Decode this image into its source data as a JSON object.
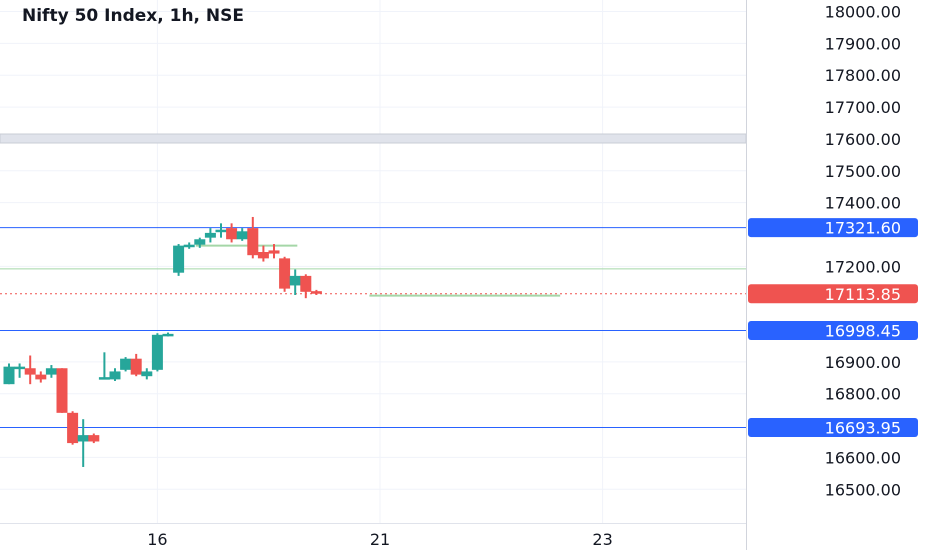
{
  "title": "Nifty 50 Index, 1h, NSE",
  "colors": {
    "up": "#26a69a",
    "down": "#ef5350",
    "level_line": "#2962ff",
    "level_badge": "#2962ff",
    "last_price_badge": "#ef5350",
    "green_line": "#a5d6a7",
    "grid": "#f0f3fa"
  },
  "chart_data": {
    "type": "candlestick",
    "ylim": [
      16460,
      18030
    ],
    "y_ticks": [
      "18000.00",
      "17900.00",
      "17800.00",
      "17700.00",
      "17600.00",
      "17500.00",
      "17400.00",
      "17200.00",
      "16900.00",
      "16800.00",
      "16600.00",
      "16500.00"
    ],
    "y_tick_values": [
      18000,
      17900,
      17800,
      17700,
      17600,
      17500,
      17400,
      17200,
      16900,
      16800,
      16600,
      16500
    ],
    "x_ticks": [
      {
        "label": "16",
        "index": 14.0
      },
      {
        "label": "21",
        "index": 35.0
      },
      {
        "label": "23",
        "index": 56.0
      }
    ],
    "candles": [
      {
        "o": 16830,
        "h": 16895,
        "l": 16830,
        "c": 16885
      },
      {
        "o": 16880,
        "h": 16895,
        "l": 16850,
        "c": 16885
      },
      {
        "o": 16880,
        "h": 16920,
        "l": 16830,
        "c": 16860
      },
      {
        "o": 16860,
        "h": 16870,
        "l": 16835,
        "c": 16845
      },
      {
        "o": 16860,
        "h": 16890,
        "l": 16850,
        "c": 16880
      },
      {
        "o": 16880,
        "h": 16880,
        "l": 16740,
        "c": 16740
      },
      {
        "o": 16740,
        "h": 16745,
        "l": 16640,
        "c": 16645
      },
      {
        "o": 16650,
        "h": 16720,
        "l": 16570,
        "c": 16670
      },
      {
        "o": 16670,
        "h": 16675,
        "l": 16645,
        "c": 16650
      },
      {
        "o": 16850,
        "h": 16930,
        "l": 16845,
        "c": 16852
      },
      {
        "o": 16845,
        "h": 16880,
        "l": 16840,
        "c": 16870
      },
      {
        "o": 16875,
        "h": 16915,
        "l": 16870,
        "c": 16910
      },
      {
        "o": 16910,
        "h": 16925,
        "l": 16855,
        "c": 16860
      },
      {
        "o": 16855,
        "h": 16880,
        "l": 16845,
        "c": 16870
      },
      {
        "o": 16875,
        "h": 16990,
        "l": 16870,
        "c": 16985
      },
      {
        "o": 16985,
        "h": 16992,
        "l": 16980,
        "c": 16988
      },
      {
        "o": 17180,
        "h": 17270,
        "l": 17170,
        "c": 17265
      },
      {
        "o": 17260,
        "h": 17275,
        "l": 17255,
        "c": 17268
      },
      {
        "o": 17268,
        "h": 17290,
        "l": 17258,
        "c": 17285
      },
      {
        "o": 17290,
        "h": 17320,
        "l": 17275,
        "c": 17305
      },
      {
        "o": 17310,
        "h": 17335,
        "l": 17290,
        "c": 17315
      },
      {
        "o": 17320,
        "h": 17335,
        "l": 17275,
        "c": 17285
      },
      {
        "o": 17285,
        "h": 17320,
        "l": 17280,
        "c": 17310
      },
      {
        "o": 17320,
        "h": 17355,
        "l": 17225,
        "c": 17235
      },
      {
        "o": 17245,
        "h": 17265,
        "l": 17215,
        "c": 17225
      },
      {
        "o": 17250,
        "h": 17270,
        "l": 17225,
        "c": 17240
      },
      {
        "o": 17225,
        "h": 17230,
        "l": 17120,
        "c": 17130
      },
      {
        "o": 17140,
        "h": 17190,
        "l": 17110,
        "c": 17170
      },
      {
        "o": 17170,
        "h": 17175,
        "l": 17100,
        "c": 17120
      },
      {
        "o": 17122,
        "h": 17126,
        "l": 17110,
        "c": 17114
      }
    ],
    "levels": [
      {
        "value": 17321.6,
        "label": "17321.60"
      },
      {
        "value": 16998.45,
        "label": "16998.45"
      },
      {
        "value": 16693.95,
        "label": "16693.95"
      }
    ],
    "last_price": {
      "value": 17113.85,
      "label": "17113.85"
    },
    "green_line": 17192
  }
}
